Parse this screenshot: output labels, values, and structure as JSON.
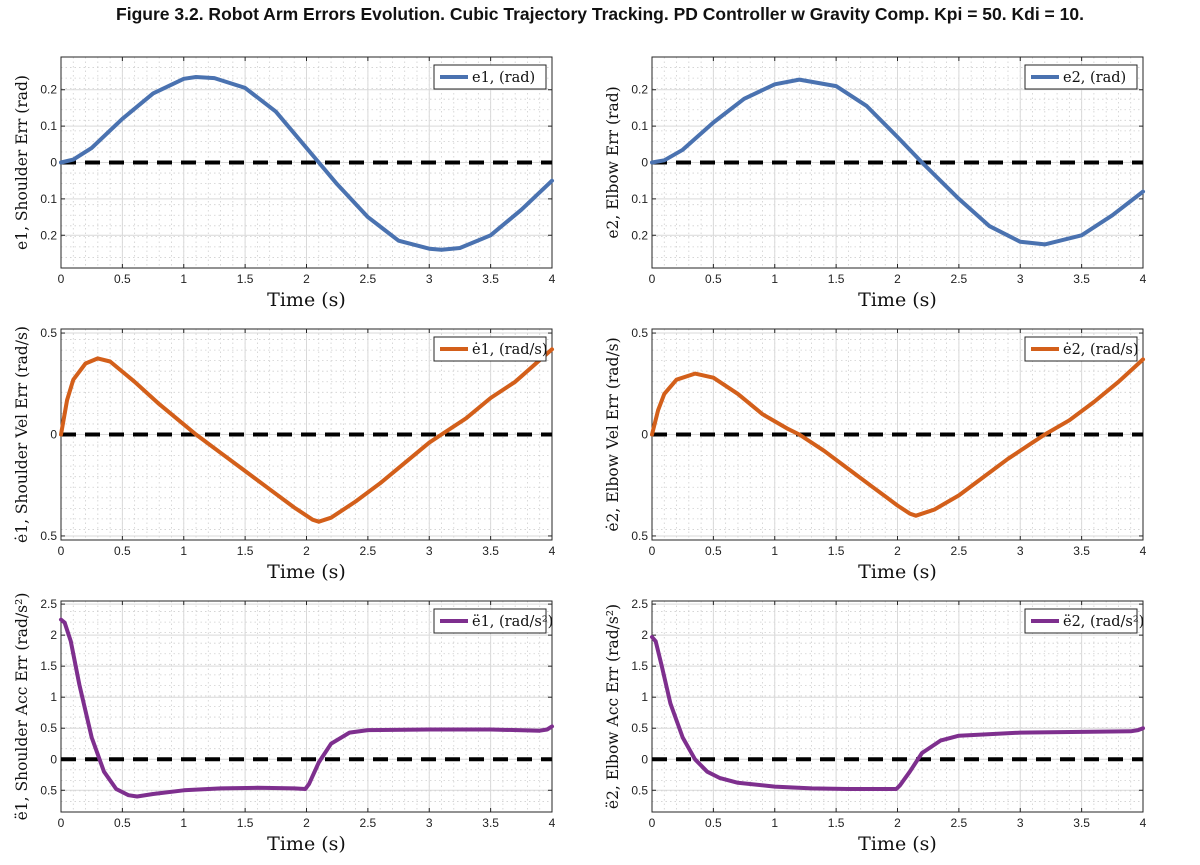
{
  "figure_title": "Figure 3.2. Robot Arm Errors Evolution. Cubic Trajectory Tracking. PD Controller w Gravity Comp. Kpi = 50. Kdi = 10.",
  "colors": {
    "position": "#4a72b0",
    "velocity": "#d35f1a",
    "acceleration": "#7e2f8e",
    "reference": "#000000"
  },
  "chart_data": [
    {
      "type": "line",
      "panel": "shoulder-position",
      "xlabel": "Time (s)",
      "ylabel": "e1, Shoulder Err (rad)",
      "xlim": [
        0,
        4
      ],
      "ylim": [
        -0.29,
        0.29
      ],
      "xticks": [
        0,
        0.5,
        1,
        1.5,
        2,
        2.5,
        3,
        3.5,
        4
      ],
      "xtick_labels": [
        "0",
        "0.5",
        "1",
        "1.5",
        "2",
        "2.5",
        "3",
        "3.5",
        "4"
      ],
      "yticks": [
        -0.2,
        -0.1,
        0,
        0.1,
        0.2
      ],
      "ytick_labels": [
        "0.2",
        "0.1",
        "0",
        "0.1",
        "0.2"
      ],
      "legend": "top-right",
      "grid": true,
      "series": [
        {
          "name": "e1, (rad)",
          "color_key": "position",
          "x": [
            0,
            0.1,
            0.25,
            0.5,
            0.75,
            1.0,
            1.1,
            1.25,
            1.5,
            1.75,
            2.0,
            2.1,
            2.25,
            2.5,
            2.75,
            3.0,
            3.1,
            3.25,
            3.5,
            3.75,
            4.0
          ],
          "y": [
            0,
            0.008,
            0.04,
            0.12,
            0.19,
            0.23,
            0.235,
            0.232,
            0.205,
            0.14,
            0.04,
            0,
            -0.06,
            -0.15,
            -0.215,
            -0.237,
            -0.24,
            -0.235,
            -0.2,
            -0.13,
            -0.05
          ]
        }
      ],
      "reference_line": 0
    },
    {
      "type": "line",
      "panel": "elbow-position",
      "xlabel": "Time (s)",
      "ylabel": "e2, Elbow Err (rad)",
      "xlim": [
        0,
        4
      ],
      "ylim": [
        -0.29,
        0.29
      ],
      "xticks": [
        0,
        0.5,
        1,
        1.5,
        2,
        2.5,
        3,
        3.5,
        4
      ],
      "xtick_labels": [
        "0",
        "0.5",
        "1",
        "1.5",
        "2",
        "2.5",
        "3",
        "3.5",
        "4"
      ],
      "yticks": [
        -0.2,
        -0.1,
        0,
        0.1,
        0.2
      ],
      "ytick_labels": [
        "0.2",
        "0.1",
        "0",
        "0.1",
        "0.2"
      ],
      "legend": "top-right",
      "grid": true,
      "series": [
        {
          "name": "e2, (rad)",
          "color_key": "position",
          "x": [
            0,
            0.1,
            0.25,
            0.5,
            0.75,
            1.0,
            1.2,
            1.5,
            1.75,
            2.0,
            2.2,
            2.5,
            2.75,
            3.0,
            3.2,
            3.5,
            3.75,
            4.0
          ],
          "y": [
            0,
            0.006,
            0.035,
            0.11,
            0.175,
            0.215,
            0.228,
            0.21,
            0.155,
            0.07,
            0,
            -0.1,
            -0.175,
            -0.218,
            -0.225,
            -0.2,
            -0.145,
            -0.08
          ]
        }
      ],
      "reference_line": 0
    },
    {
      "type": "line",
      "panel": "shoulder-velocity",
      "xlabel": "Time (s)",
      "ylabel": "ė1, Shoulder Vel Err (rad/s)",
      "xlim": [
        0,
        4
      ],
      "ylim": [
        -0.52,
        0.52
      ],
      "xticks": [
        0,
        0.5,
        1,
        1.5,
        2,
        2.5,
        3,
        3.5,
        4
      ],
      "xtick_labels": [
        "0",
        "0.5",
        "1",
        "1.5",
        "2",
        "2.5",
        "3",
        "3.5",
        "4"
      ],
      "yticks": [
        -0.5,
        0,
        0.5
      ],
      "ytick_labels": [
        "0.5",
        "0",
        "0.5"
      ],
      "legend": "top-right",
      "grid": true,
      "series": [
        {
          "name": "ė1, (rad/s)",
          "color_key": "velocity",
          "x": [
            0,
            0.05,
            0.1,
            0.2,
            0.3,
            0.4,
            0.6,
            0.8,
            1.0,
            1.1,
            1.3,
            1.5,
            1.7,
            1.9,
            2.05,
            2.1,
            2.2,
            2.4,
            2.6,
            2.8,
            3.0,
            3.1,
            3.3,
            3.5,
            3.7,
            4.0
          ],
          "y": [
            0,
            0.17,
            0.27,
            0.35,
            0.375,
            0.36,
            0.26,
            0.15,
            0.05,
            0,
            -0.09,
            -0.18,
            -0.27,
            -0.36,
            -0.42,
            -0.43,
            -0.41,
            -0.33,
            -0.24,
            -0.14,
            -0.04,
            0,
            0.08,
            0.18,
            0.26,
            0.42
          ]
        }
      ],
      "reference_line": 0
    },
    {
      "type": "line",
      "panel": "elbow-velocity",
      "xlabel": "Time (s)",
      "ylabel": "ė2, Elbow Vel Err (rad/s)",
      "xlim": [
        0,
        4
      ],
      "ylim": [
        -0.52,
        0.52
      ],
      "xticks": [
        0,
        0.5,
        1,
        1.5,
        2,
        2.5,
        3,
        3.5,
        4
      ],
      "xtick_labels": [
        "0",
        "0.5",
        "1",
        "1.5",
        "2",
        "2.5",
        "3",
        "3.5",
        "4"
      ],
      "yticks": [
        -0.5,
        0,
        0.5
      ],
      "ytick_labels": [
        "0.5",
        "0",
        "0.5"
      ],
      "legend": "top-right",
      "grid": true,
      "series": [
        {
          "name": "ė2, (rad/s)",
          "color_key": "velocity",
          "x": [
            0,
            0.05,
            0.1,
            0.2,
            0.35,
            0.5,
            0.7,
            0.9,
            1.1,
            1.2,
            1.4,
            1.6,
            1.8,
            2.0,
            2.1,
            2.15,
            2.3,
            2.5,
            2.7,
            2.9,
            3.1,
            3.2,
            3.4,
            3.6,
            3.8,
            4.0
          ],
          "y": [
            0,
            0.12,
            0.2,
            0.27,
            0.3,
            0.28,
            0.2,
            0.1,
            0.03,
            0,
            -0.08,
            -0.17,
            -0.26,
            -0.35,
            -0.39,
            -0.4,
            -0.37,
            -0.3,
            -0.21,
            -0.12,
            -0.04,
            0,
            0.07,
            0.16,
            0.26,
            0.37
          ]
        }
      ],
      "reference_line": 0
    },
    {
      "type": "line",
      "panel": "shoulder-acceleration",
      "xlabel": "Time (s)",
      "ylabel": "ë1, Shoulder Acc Err (rad/s²)",
      "xlim": [
        0,
        4
      ],
      "ylim": [
        -0.85,
        2.55
      ],
      "xticks": [
        0,
        0.5,
        1,
        1.5,
        2,
        2.5,
        3,
        3.5,
        4
      ],
      "xtick_labels": [
        "0",
        "0.5",
        "1",
        "1.5",
        "2",
        "2.5",
        "3",
        "3.5",
        "4"
      ],
      "yticks": [
        -0.5,
        0,
        0.5,
        1,
        1.5,
        2,
        2.5
      ],
      "ytick_labels": [
        "0.5",
        "0",
        "0.5",
        "1",
        "1.5",
        "2",
        "2.5"
      ],
      "legend": "top-right",
      "grid": true,
      "series": [
        {
          "name": "ë1, (rad/s²)",
          "color_key": "acceleration",
          "x": [
            0,
            0.03,
            0.08,
            0.15,
            0.25,
            0.35,
            0.45,
            0.55,
            0.62,
            0.75,
            1.0,
            1.3,
            1.6,
            1.9,
            1.99,
            2.02,
            2.1,
            2.2,
            2.35,
            2.5,
            3.0,
            3.5,
            3.9,
            3.96,
            4.0
          ],
          "y": [
            2.25,
            2.2,
            1.9,
            1.2,
            0.35,
            -0.2,
            -0.48,
            -0.58,
            -0.6,
            -0.56,
            -0.5,
            -0.47,
            -0.46,
            -0.47,
            -0.48,
            -0.4,
            -0.05,
            0.25,
            0.43,
            0.47,
            0.48,
            0.48,
            0.46,
            0.48,
            0.53
          ]
        }
      ],
      "reference_line": 0
    },
    {
      "type": "line",
      "panel": "elbow-acceleration",
      "xlabel": "Time (s)",
      "ylabel": "ë2, Elbow Acc Err (rad/s²)",
      "xlim": [
        0,
        4
      ],
      "ylim": [
        -0.85,
        2.55
      ],
      "xticks": [
        0,
        0.5,
        1,
        1.5,
        2,
        2.5,
        3,
        3.5,
        4
      ],
      "xtick_labels": [
        "0",
        "0.5",
        "1",
        "1.5",
        "2",
        "2.5",
        "3",
        "3.5",
        "4"
      ],
      "yticks": [
        -0.5,
        0,
        0.5,
        1,
        1.5,
        2,
        2.5
      ],
      "ytick_labels": [
        "0.5",
        "0",
        "0.5",
        "1",
        "1.5",
        "2",
        "2.5"
      ],
      "legend": "top-right",
      "grid": true,
      "series": [
        {
          "name": "ë2, (rad/s²)",
          "color_key": "acceleration",
          "x": [
            0,
            0.03,
            0.08,
            0.15,
            0.25,
            0.35,
            0.45,
            0.55,
            0.7,
            1.0,
            1.3,
            1.6,
            1.9,
            1.99,
            2.02,
            2.1,
            2.2,
            2.35,
            2.5,
            3.0,
            3.5,
            3.9,
            3.96,
            4.0
          ],
          "y": [
            1.97,
            1.9,
            1.5,
            0.9,
            0.35,
            0.0,
            -0.2,
            -0.3,
            -0.38,
            -0.44,
            -0.47,
            -0.48,
            -0.48,
            -0.48,
            -0.42,
            -0.2,
            0.1,
            0.3,
            0.38,
            0.43,
            0.44,
            0.45,
            0.47,
            0.5
          ]
        }
      ],
      "reference_line": 0
    }
  ]
}
